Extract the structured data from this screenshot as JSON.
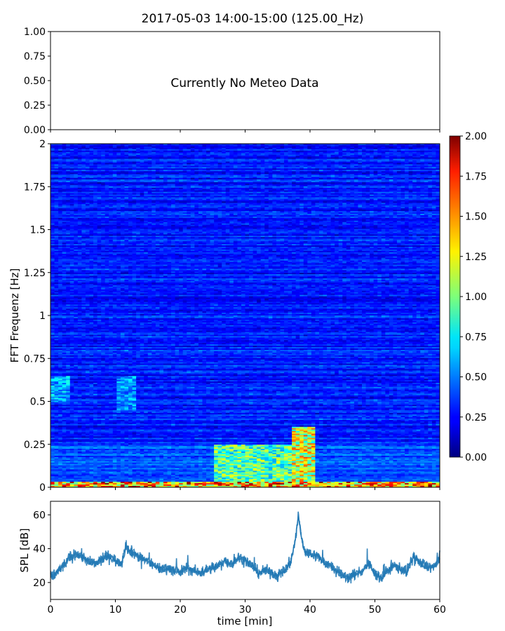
{
  "figure_title": "2017-05-03 14:00-15:00 (125.00_Hz)",
  "chart_data": [
    {
      "type": "line",
      "panel": "meteo",
      "annotation": "Currently No Meteo Data",
      "ylim": [
        0,
        1
      ],
      "yticks": [
        "0.00",
        "0.25",
        "0.50",
        "0.75",
        "1.00"
      ],
      "xlim": [
        0,
        60
      ],
      "grid": false,
      "series": []
    },
    {
      "type": "heatmap",
      "panel": "spectrogram",
      "ylabel": "FFT Frequenz [Hz]",
      "xlim": [
        0,
        60
      ],
      "ylim": [
        0,
        2
      ],
      "yticks": [
        "0",
        "0.25",
        "0.5",
        "0.75",
        "1",
        "1.25",
        "1.5",
        "1.75",
        "2"
      ],
      "colormap": "jet",
      "colorbar": {
        "range": [
          0,
          2
        ],
        "ticks": [
          "0.00",
          "0.25",
          "0.50",
          "0.75",
          "1.00",
          "1.25",
          "1.50",
          "1.75",
          "2.00"
        ]
      },
      "time_columns_min": 6,
      "frequency_rows": 250,
      "background_level": 0.3,
      "hotspots": [
        {
          "t_start": 0,
          "t_end": 60,
          "f_start": 0,
          "f_end": 0.03,
          "level": 1.6
        },
        {
          "t_start": 25,
          "t_end": 37,
          "f_start": 0.03,
          "f_end": 0.25,
          "level": 1.0
        },
        {
          "t_start": 37,
          "t_end": 41,
          "f_start": 0.03,
          "f_end": 0.35,
          "level": 1.3
        },
        {
          "t_start": 0,
          "t_end": 3,
          "f_start": 0.5,
          "f_end": 0.65,
          "level": 0.65
        },
        {
          "t_start": 10,
          "t_end": 13,
          "f_start": 0.45,
          "f_end": 0.65,
          "level": 0.6
        }
      ]
    },
    {
      "type": "line",
      "panel": "spl",
      "xlabel": "time [min]",
      "ylabel": "SPL [dB]",
      "xlim": [
        0,
        60
      ],
      "ylim": [
        10,
        68
      ],
      "xticks": [
        "0",
        "10",
        "20",
        "30",
        "40",
        "50",
        "60"
      ],
      "yticks": [
        "20",
        "40",
        "60"
      ],
      "color": "#1f77b4",
      "series": [
        {
          "x": [
            0,
            1,
            2,
            3,
            4,
            5,
            6,
            7,
            8,
            9,
            10,
            11,
            11.7,
            12,
            13,
            14,
            15,
            16,
            17,
            18,
            19,
            20,
            21,
            22,
            23,
            24,
            25,
            26,
            27,
            28,
            29,
            30,
            31,
            32,
            33,
            34,
            35,
            36,
            37,
            37.7,
            38.2,
            38.7,
            39.2,
            40,
            41,
            42,
            43,
            44,
            45,
            46,
            47,
            48,
            49,
            50,
            51,
            52,
            53,
            54,
            55,
            56,
            57,
            58,
            59,
            60
          ],
          "values": [
            23,
            26,
            30,
            35,
            37,
            35,
            32,
            31,
            34,
            36,
            33,
            32,
            43,
            39,
            37,
            34,
            33,
            30,
            28,
            29,
            27,
            26,
            29,
            27,
            26,
            27,
            29,
            30,
            33,
            31,
            35,
            33,
            30,
            26,
            27,
            26,
            24,
            27,
            32,
            44,
            60,
            46,
            38,
            37,
            36,
            33,
            30,
            27,
            24,
            23,
            25,
            27,
            31,
            25,
            23,
            27,
            30,
            28,
            27,
            36,
            31,
            30,
            29,
            34
          ],
          "spread_db": 4
        }
      ]
    }
  ]
}
